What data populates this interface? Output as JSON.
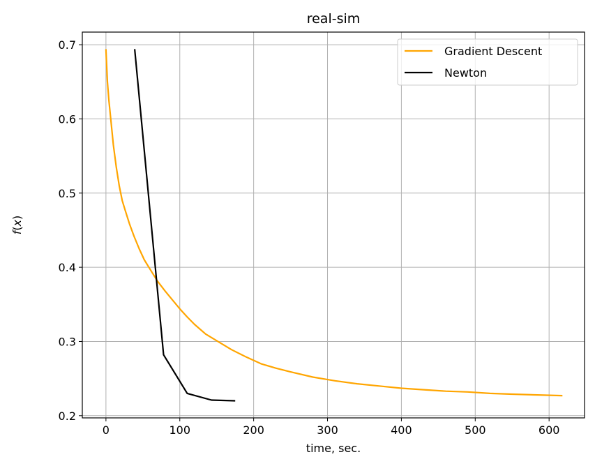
{
  "chart_data": {
    "type": "line",
    "title": "real-sim",
    "xlabel": "time, sec.",
    "ylabel": "f(x)",
    "xlim": [
      -32,
      648
    ],
    "ylim": [
      0.197,
      0.717
    ],
    "xticks": [
      0,
      100,
      200,
      300,
      400,
      500,
      600
    ],
    "yticks": [
      0.2,
      0.3,
      0.4,
      0.5,
      0.6,
      0.7
    ],
    "xtick_labels": [
      "0",
      "100",
      "200",
      "300",
      "400",
      "500",
      "600"
    ],
    "ytick_labels": [
      "0.2",
      "0.3",
      "0.4",
      "0.5",
      "0.6",
      "0.7"
    ],
    "grid": true,
    "legend_position": "top-right",
    "series": [
      {
        "name": "Gradient Descent",
        "color": "#ffa500",
        "x": [
          0,
          2,
          4,
          7,
          10,
          14,
          18,
          22,
          26,
          32,
          38,
          45,
          52,
          60,
          70,
          80,
          90,
          100,
          110,
          120,
          135,
          150,
          170,
          190,
          210,
          230,
          250,
          280,
          310,
          340,
          370,
          400,
          430,
          460,
          490,
          520,
          550,
          580,
          617
        ],
        "y": [
          0.693,
          0.65,
          0.625,
          0.595,
          0.565,
          0.535,
          0.51,
          0.49,
          0.477,
          0.458,
          0.442,
          0.425,
          0.41,
          0.397,
          0.381,
          0.368,
          0.356,
          0.344,
          0.333,
          0.323,
          0.31,
          0.301,
          0.289,
          0.279,
          0.27,
          0.264,
          0.259,
          0.252,
          0.247,
          0.243,
          0.24,
          0.237,
          0.235,
          0.233,
          0.232,
          0.23,
          0.229,
          0.228,
          0.227
        ]
      },
      {
        "name": "Newton",
        "color": "#000000",
        "x": [
          39,
          78,
          110,
          143,
          174
        ],
        "y": [
          0.693,
          0.282,
          0.23,
          0.221,
          0.22
        ]
      }
    ]
  }
}
